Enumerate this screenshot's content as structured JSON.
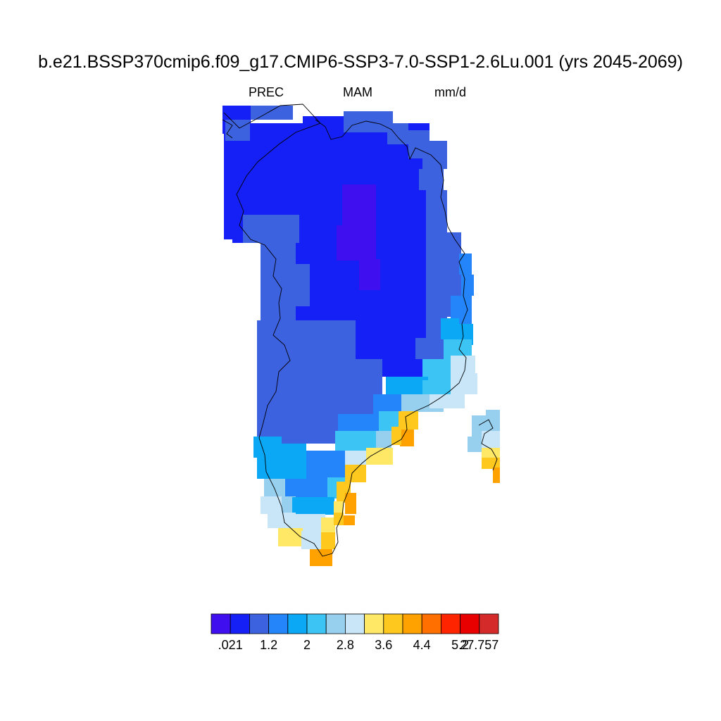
{
  "title": "b.e21.BSSP370cmip6.f09_g17.CMIP6-SSP3-7.0-SSP1-2.6Lu.001 (yrs 2045-2069)",
  "subtitle": {
    "variable": "PREC",
    "season": "MAM",
    "units": "mm/d"
  },
  "colorbar": {
    "colors": [
      "#3f0ff0",
      "#1420f5",
      "#3d62e0",
      "#2485fa",
      "#0aa8f5",
      "#3cc4f5",
      "#96d0ee",
      "#c8e6f7",
      "#ffe866",
      "#ffc81e",
      "#ffa200",
      "#ff6f00",
      "#ff2400",
      "#e80000",
      "#d42a2a"
    ],
    "labels": [
      ".021",
      "",
      "1.2",
      "",
      "2",
      "",
      "2.8",
      "",
      "3.6",
      "",
      "4.4",
      "",
      "5.2",
      "27.757"
    ]
  },
  "map": {
    "region": "Greenland",
    "value_classes": {
      "highest_inland": 0,
      "interior": 1,
      "west_and_margin": 2,
      "coastal_high": 8,
      "southeast_coast": 10
    }
  }
}
